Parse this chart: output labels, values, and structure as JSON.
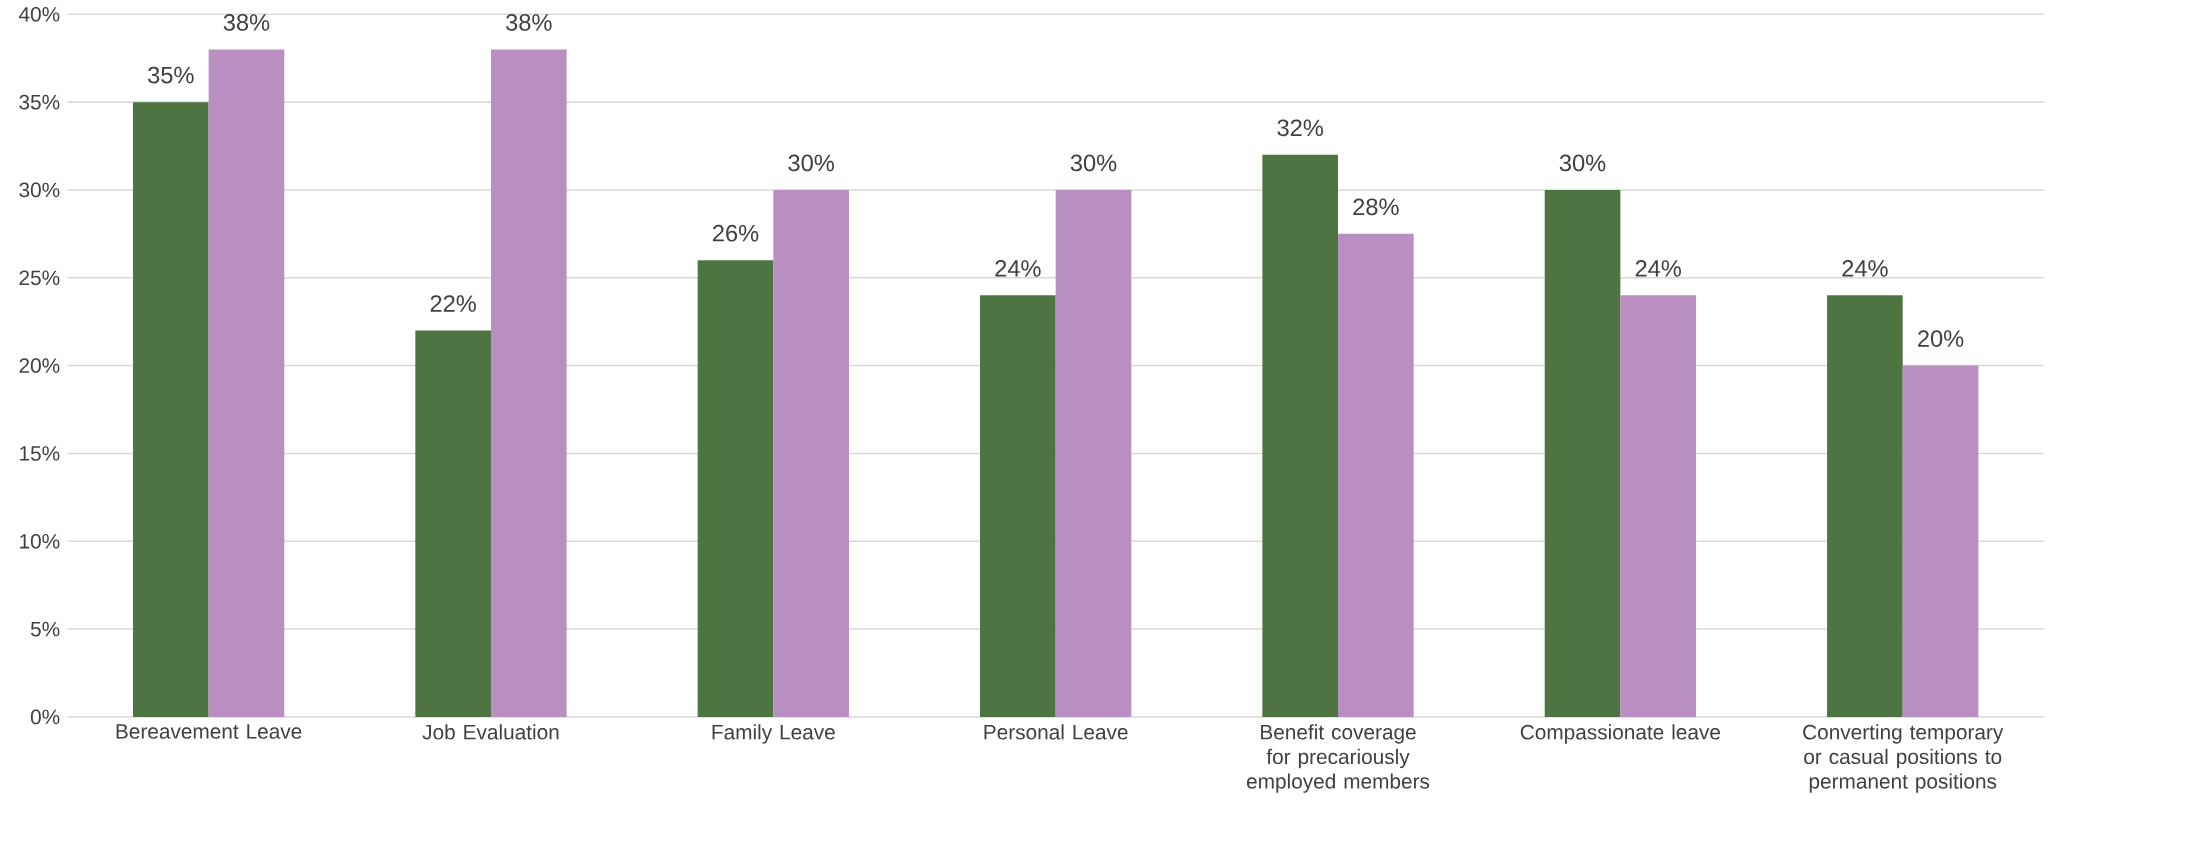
{
  "chart_data": {
    "type": "bar",
    "categories": [
      "Bereavement Leave",
      "Job Evaluation",
      "Family Leave",
      "Personal Leave",
      "Benefit coverage for precariously employed members",
      "Compassionate leave",
      "Converting temporary or casual positions to permanent positions"
    ],
    "series": [
      {
        "color": "#4e7541",
        "values": [
          35,
          22,
          26,
          24,
          32,
          30,
          24
        ],
        "value_labels": [
          "35%",
          "22%",
          "26%",
          "24%",
          "32%",
          "30%",
          "24%"
        ]
      },
      {
        "color": "#b98fc1",
        "values": [
          38,
          38,
          30,
          30,
          27.5,
          24,
          20
        ],
        "value_labels": [
          "38%",
          "38%",
          "30%",
          "30%",
          "28%",
          "24%",
          "20%"
        ]
      }
    ],
    "ylim": [
      0,
      40
    ],
    "yticks": [
      {
        "value": 0,
        "label": "0%"
      },
      {
        "value": 5,
        "label": "5%"
      },
      {
        "value": 10,
        "label": "10%"
      },
      {
        "value": 15,
        "label": "15%"
      },
      {
        "value": 20,
        "label": "20%"
      },
      {
        "value": 25,
        "label": "25%"
      },
      {
        "value": 30,
        "label": "30%"
      },
      {
        "value": 35,
        "label": "35%"
      },
      {
        "value": 40,
        "label": "40%"
      }
    ],
    "grid": "y"
  }
}
